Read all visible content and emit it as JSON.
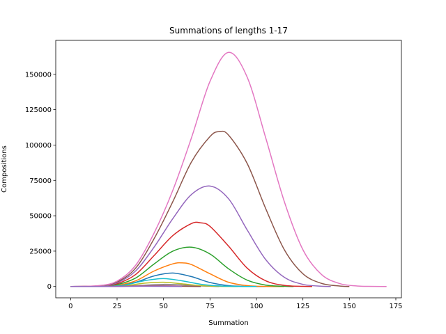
{
  "chart_data": {
    "type": "line",
    "title": "Summations of lengths 1-17",
    "xlabel": "Summation",
    "ylabel": "Compositions",
    "xlim": [
      -8,
      178
    ],
    "ylim": [
      -8000,
      174000
    ],
    "x_ticks": [
      0,
      25,
      50,
      75,
      100,
      125,
      150,
      175
    ],
    "y_ticks": [
      0,
      25000,
      50000,
      75000,
      100000,
      125000,
      150000
    ],
    "x_tick_labels": [
      "0",
      "25",
      "50",
      "75",
      "100",
      "125",
      "150",
      "175"
    ],
    "y_tick_labels": [
      "0",
      "25000",
      "50000",
      "75000",
      "100000",
      "125000",
      "150000"
    ],
    "grid": false,
    "legend": "none",
    "series": [
      {
        "color": "#1f77b4",
        "x": [
          0,
          15,
          25,
          35,
          45,
          55,
          65,
          75,
          85,
          95,
          105
        ],
        "y": [
          0,
          100,
          600,
          3000,
          7500,
          9500,
          7000,
          2800,
          600,
          80,
          0
        ]
      },
      {
        "color": "#ff7f0e",
        "x": [
          0,
          15,
          25,
          35,
          45,
          55,
          60,
          65,
          75,
          85,
          95,
          105,
          115
        ],
        "y": [
          0,
          150,
          900,
          4000,
          11000,
          16000,
          16700,
          15500,
          9000,
          3000,
          600,
          80,
          0
        ]
      },
      {
        "color": "#2ca02c",
        "x": [
          0,
          15,
          25,
          35,
          45,
          55,
          65,
          75,
          85,
          95,
          105,
          115,
          120
        ],
        "y": [
          0,
          200,
          1400,
          6000,
          16000,
          25000,
          27800,
          23000,
          12500,
          4500,
          1000,
          150,
          0
        ]
      },
      {
        "color": "#d62728",
        "x": [
          0,
          15,
          25,
          35,
          45,
          55,
          65,
          70,
          75,
          85,
          95,
          105,
          115,
          125,
          130
        ],
        "y": [
          0,
          300,
          2000,
          8500,
          22000,
          36000,
          44500,
          45000,
          42500,
          28500,
          13000,
          4000,
          800,
          100,
          0
        ]
      },
      {
        "color": "#9467bd",
        "x": [
          0,
          15,
          25,
          35,
          45,
          55,
          65,
          75,
          85,
          95,
          105,
          115,
          125,
          135,
          140
        ],
        "y": [
          0,
          400,
          2600,
          11000,
          28000,
          48000,
          65000,
          71000,
          62000,
          40000,
          19000,
          6500,
          1500,
          200,
          0
        ]
      },
      {
        "color": "#8c564b",
        "x": [
          0,
          15,
          25,
          35,
          45,
          55,
          65,
          75,
          80,
          85,
          95,
          105,
          115,
          125,
          135,
          145,
          150
        ],
        "y": [
          0,
          500,
          3200,
          13000,
          34000,
          60000,
          88000,
          106000,
          109500,
          107000,
          87000,
          55000,
          26000,
          9000,
          2200,
          300,
          0
        ]
      },
      {
        "color": "#e377c2",
        "x": [
          0,
          15,
          25,
          35,
          45,
          55,
          65,
          75,
          85,
          95,
          105,
          115,
          125,
          135,
          145,
          155,
          160,
          170
        ],
        "y": [
          0,
          600,
          3800,
          15000,
          38000,
          68000,
          105000,
          145000,
          165500,
          148000,
          105000,
          60000,
          26000,
          8500,
          2000,
          300,
          100,
          0
        ]
      },
      {
        "color": "#7f7f7f",
        "x": [
          0,
          20,
          30,
          40,
          50,
          60,
          70,
          80
        ],
        "y": [
          0,
          50,
          300,
          900,
          1500,
          1100,
          400,
          0
        ]
      },
      {
        "color": "#bcbd22",
        "x": [
          0,
          20,
          30,
          40,
          50,
          60,
          70,
          80,
          90
        ],
        "y": [
          0,
          80,
          700,
          2400,
          3000,
          1900,
          600,
          100,
          0
        ]
      },
      {
        "color": "#17becf",
        "x": [
          0,
          20,
          30,
          40,
          50,
          60,
          70,
          80,
          90,
          100
        ],
        "y": [
          0,
          120,
          1300,
          4200,
          5600,
          4000,
          1600,
          400,
          50,
          0
        ]
      },
      {
        "color": "#e377c2",
        "x": [
          0,
          20,
          30,
          40,
          50,
          60,
          70
        ],
        "y": [
          0,
          30,
          200,
          500,
          600,
          250,
          0
        ]
      },
      {
        "color": "#8c564b",
        "x": [
          0,
          20,
          30,
          40,
          50,
          60,
          70
        ],
        "y": [
          0,
          20,
          150,
          350,
          350,
          150,
          0
        ]
      },
      {
        "color": "#9467bd",
        "x": [
          0,
          20,
          30,
          40,
          50,
          60
        ],
        "y": [
          0,
          15,
          100,
          200,
          120,
          0
        ]
      }
    ]
  }
}
